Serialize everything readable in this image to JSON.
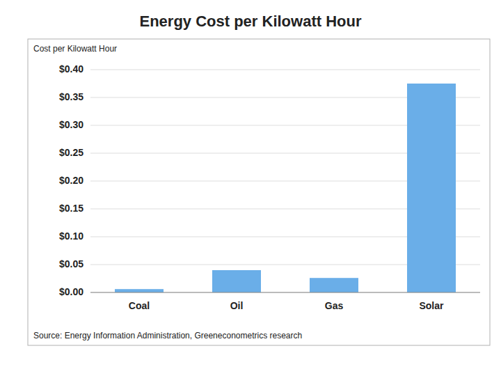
{
  "chart_data": {
    "type": "bar",
    "title": "Energy Cost per Kilowatt Hour",
    "ylabel": "Cost per Kilowatt Hour",
    "source": "Source: Energy Information Administration, Greeneconometrics research",
    "categories": [
      "Coal",
      "Oil",
      "Gas",
      "Solar"
    ],
    "values": [
      0.006,
      0.04,
      0.026,
      0.375
    ],
    "color": "#6aaee8",
    "ylim": [
      0,
      0.4
    ],
    "yticks": [
      {
        "value": 0.0,
        "label": "$0.00"
      },
      {
        "value": 0.05,
        "label": "$0.05"
      },
      {
        "value": 0.1,
        "label": "$0.10"
      },
      {
        "value": 0.15,
        "label": "$0.15"
      },
      {
        "value": 0.2,
        "label": "$0.20"
      },
      {
        "value": 0.25,
        "label": "$0.25"
      },
      {
        "value": 0.3,
        "label": "$0.30"
      },
      {
        "value": 0.35,
        "label": "$0.35"
      },
      {
        "value": 0.4,
        "label": "$0.40"
      }
    ],
    "grid": true
  }
}
